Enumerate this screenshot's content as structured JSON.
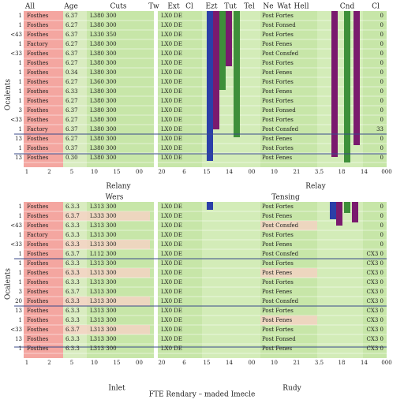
{
  "side_label": "Ocalents",
  "panels": [
    {
      "header": [
        "All",
        "Age",
        "Cuts",
        "Tw",
        "Ext",
        "Cl",
        "Ezt",
        "Tut",
        "Tel",
        "Ne",
        "Wat",
        "Hell",
        "Cnd",
        "Cl"
      ],
      "rows": [
        [
          "1",
          "Fosthes",
          "6.37",
          "L380 300",
          "LX0 DE",
          "Post Fortes",
          "0"
        ],
        [
          "1",
          "Fosthes",
          "6.27",
          "L380 300",
          "LX0 DE",
          "Post Fonsed",
          "0"
        ],
        [
          "<43",
          "Fosthes",
          "6.37",
          "L330 350",
          "LX0 DE",
          "Post Fortes",
          "0"
        ],
        [
          "1",
          "Factory",
          "6.27",
          "L380 300",
          "LX0 DE",
          "Post Fenes",
          "0"
        ],
        [
          "<33",
          "Fosthes",
          "6.37",
          "L380 300",
          "LX0 DE",
          "Post Consfed",
          "0"
        ],
        [
          "1",
          "Fosthes",
          "6.27",
          "L380 300",
          "LX0 DE",
          "Post Fortes",
          "0"
        ],
        [
          "1",
          "Fosthes",
          "0.34",
          "L380 300",
          "LX0 DE",
          "Post Fenes",
          "0"
        ],
        [
          "1",
          "Fosthes",
          "6.27",
          "L360 300",
          "LX0 DE",
          "Post Fortes",
          "0"
        ],
        [
          "1",
          "Fosthes",
          "6.33",
          "L380 300",
          "LX0 DE",
          "Post Fenes",
          "0"
        ],
        [
          "1",
          "Fosthes",
          "6.27",
          "L380 300",
          "LX0 DE",
          "Post Fortes",
          "0"
        ],
        [
          "3",
          "Fosthes",
          "6.37",
          "L380 300",
          "LX0 DE",
          "Post Fonsed",
          "0"
        ],
        [
          "<33",
          "Fosthes",
          "6.27",
          "L380 300",
          "LX0 DE",
          "Post Fortes",
          "0"
        ],
        [
          "1",
          "Factory",
          "6.37",
          "L380 300",
          "LX0 DE",
          "Post Consfed",
          "33"
        ],
        [
          "13",
          "Fosthes",
          "6.27",
          "L380 300",
          "LX0 DE",
          "Post Fenes",
          "0"
        ],
        [
          "1",
          "Fosthes",
          "0.37",
          "L380 300",
          "LX0 DE",
          "Post Fortes",
          "0"
        ],
        [
          "13",
          "Fosthes",
          "0.30",
          "L380 300",
          "LX0 DE",
          "Post Fenes",
          "0"
        ]
      ],
      "footer": [
        "1",
        "2",
        "5",
        "10",
        "15",
        "00",
        "20",
        "6",
        "15",
        "14",
        "00",
        "10",
        "21",
        "3.5",
        "18",
        "14",
        "000"
      ],
      "captions": [
        "Relany",
        "Relay"
      ]
    },
    {
      "header": [
        "Wers",
        "Tensing"
      ],
      "rows": [
        [
          "1",
          "Fosthes",
          "6.3.3",
          "L313 300",
          "LX0 DE",
          "Post Fortes",
          "0"
        ],
        [
          "1",
          "Fosthes",
          "6.3.7",
          "L333 300",
          "LX0 DE",
          "Post Fenes",
          "0"
        ],
        [
          "<43",
          "Fosthes",
          "6.3.3",
          "L313 300",
          "LX0 DE",
          "Post Consfed",
          "0"
        ],
        [
          "1",
          "Factory",
          "6.3.3",
          "L313 300",
          "LX0 DE",
          "Post Fortes",
          "0"
        ],
        [
          "<33",
          "Fosthes",
          "6.3.3",
          "L313 300",
          "LX0 DE",
          "Post Fenes",
          "0"
        ],
        [
          "1",
          "Fosthes",
          "6.3.7",
          "L112 300",
          "LX0 DE",
          "Post Consfed",
          "CX3 0"
        ],
        [
          "1",
          "Fosthes",
          "6.3.3",
          "L313 300",
          "LX0 DE",
          "Post Fortes",
          "CX3 0"
        ],
        [
          "1",
          "Fosthes",
          "6.3.3",
          "L313 300",
          "LX0 DE",
          "Post Fenes",
          "CX3 0"
        ],
        [
          "1",
          "Fosthes",
          "6.3.3",
          "L313 300",
          "LX0 DE",
          "Post Fortes",
          "CX3 0"
        ],
        [
          "3",
          "Fosthes",
          "6.3.7",
          "L313 300",
          "LX0 DE",
          "Post Fenes",
          "CX3 0"
        ],
        [
          "20",
          "Fosthes",
          "6.3.3",
          "L313 300",
          "LX0 DE",
          "Post Consfed",
          "CX3 0"
        ],
        [
          "13",
          "Fosthes",
          "6.3.3",
          "L313 300",
          "LX0 DE",
          "Post Fortes",
          "CX3 0"
        ],
        [
          "1",
          "Fosthes",
          "6.3.3",
          "L313 300",
          "LX0 DE",
          "Post Fenes",
          "CX3 0"
        ],
        [
          "<33",
          "Fosthes",
          "6.3.7",
          "L313 300",
          "LX0 DE",
          "Post Fortes",
          "CX3 0"
        ],
        [
          "13",
          "Fosthes",
          "6.3.3",
          "L313 300",
          "LX0 DE",
          "Post Fonsed",
          "CX3 0"
        ],
        [
          "1",
          "Fosthes",
          "6.3.3",
          "L313 300",
          "LX0 DE",
          "Post Fenes",
          "CX3 0"
        ]
      ],
      "footer": [
        "1",
        "2",
        "5",
        "10",
        "15",
        "00",
        "20",
        "6",
        "15",
        "14",
        "00",
        "10",
        "21",
        "3.5",
        "18",
        "14",
        "000"
      ],
      "captions": [
        "Inlet",
        "Rudy"
      ]
    }
  ],
  "bottom_title": "FTE Rendary – maded Imecle"
}
